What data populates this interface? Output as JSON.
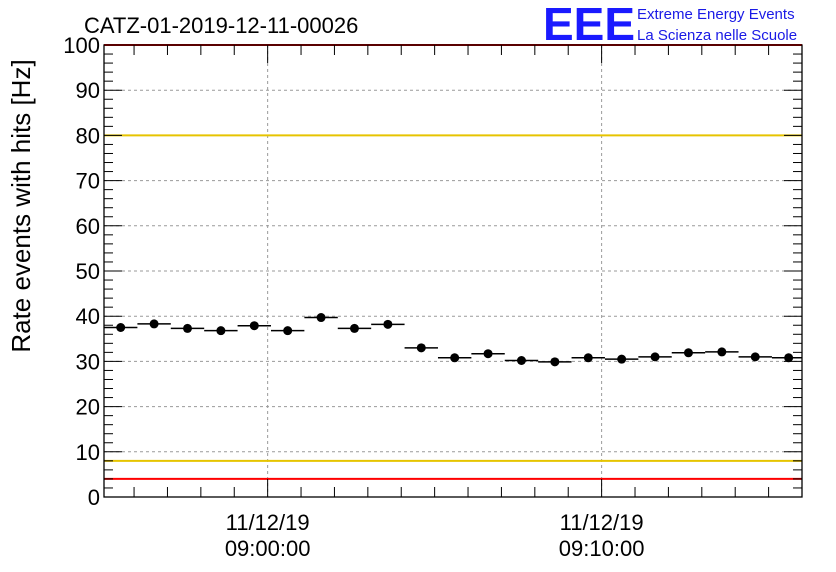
{
  "title": "CATZ-01-2019-12-11-00026",
  "logo": {
    "mark": "EEE",
    "line1": "Extreme Energy Events",
    "line2": "La Scienza nelle Scuole"
  },
  "chart_data": {
    "type": "scatter",
    "ylabel": "Rate events with hits [Hz]",
    "ylim": [
      0,
      100
    ],
    "yticks": [
      "0",
      "10",
      "20",
      "30",
      "40",
      "50",
      "60",
      "70",
      "80",
      "90",
      "100"
    ],
    "xticks": [
      {
        "date": "11/12/19",
        "time": "09:00:00",
        "minutes": 0
      },
      {
        "date": "11/12/19",
        "time": "09:10:00",
        "minutes": 10
      }
    ],
    "xlim_minutes": [
      -4.9,
      16.0
    ],
    "grid": true,
    "bin_width_minutes": 1,
    "series": [
      {
        "marker": "filled-circle",
        "color": "#000000",
        "x_minutes": [
          -4.4,
          -3.4,
          -2.4,
          -1.4,
          -0.4,
          0.6,
          1.6,
          2.6,
          3.6,
          4.6,
          5.6,
          6.6,
          7.6,
          8.6,
          9.6,
          10.6,
          11.6,
          12.6,
          13.6,
          14.6,
          15.6
        ],
        "values": [
          37.5,
          38.3,
          37.3,
          36.8,
          37.9,
          36.8,
          39.7,
          37.3,
          38.2,
          33.0,
          30.8,
          31.7,
          30.2,
          29.9,
          30.8,
          30.5,
          31.0,
          31.9,
          32.1,
          31.0,
          30.8
        ]
      }
    ],
    "reference_lines": [
      {
        "value": 100,
        "color": "#ff0000"
      },
      {
        "value": 80,
        "color": "#e6c400"
      },
      {
        "value": 8,
        "color": "#e6c400"
      },
      {
        "value": 4,
        "color": "#ff0000"
      }
    ]
  }
}
